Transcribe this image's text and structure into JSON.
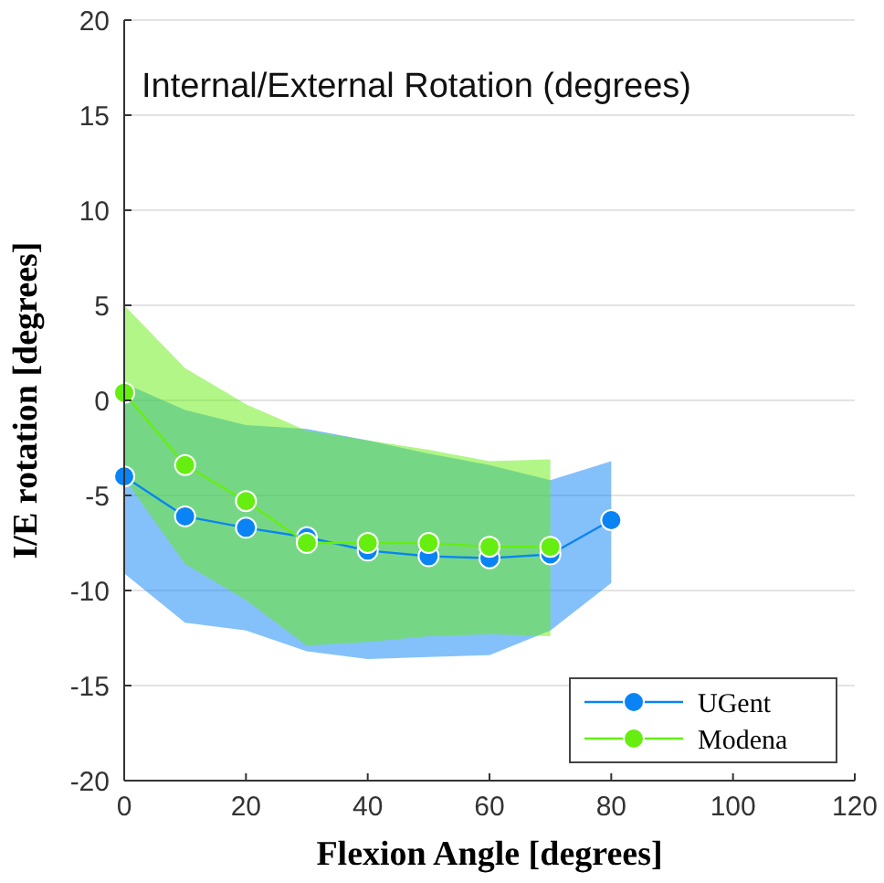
{
  "chart_data": {
    "type": "line",
    "title": "Internal/External Rotation (degrees)",
    "xlabel": "Flexion Angle [degrees]",
    "ylabel": "I/E rotation [degrees]",
    "xlim": [
      0,
      120
    ],
    "xticks": [
      0,
      20,
      40,
      60,
      80,
      100,
      120
    ],
    "ylim": [
      -20,
      20
    ],
    "yticks": [
      -20,
      -15,
      -10,
      -5,
      0,
      5,
      10,
      15,
      20
    ],
    "grid": "y",
    "legend": "bottom right",
    "marker": "circle",
    "line_style": "solid",
    "series": [
      {
        "name": "UGent",
        "color": "#0a84f5",
        "x": [
          0,
          10,
          20,
          30,
          40,
          50,
          60,
          70,
          80
        ],
        "values": [
          -4.0,
          -6.1,
          -6.7,
          -7.2,
          -7.9,
          -8.2,
          -8.3,
          -8.1,
          -6.3
        ],
        "upper": [
          0.9,
          -0.5,
          -1.3,
          -1.5,
          -2.1,
          -2.8,
          -3.4,
          -4.2,
          -3.2
        ],
        "lower": [
          -9.1,
          -11.7,
          -12.1,
          -13.2,
          -13.6,
          -13.5,
          -13.4,
          -12.1,
          -9.6
        ]
      },
      {
        "name": "Modena",
        "color": "#66ee11",
        "x": [
          0,
          10,
          20,
          30,
          40,
          50,
          60,
          70
        ],
        "values": [
          0.4,
          -3.4,
          -5.3,
          -7.5,
          -7.5,
          -7.5,
          -7.7,
          -7.7
        ],
        "upper": [
          5.0,
          1.7,
          -0.2,
          -1.6,
          -2.1,
          -2.6,
          -3.2,
          -3.1
        ],
        "lower": [
          -4.1,
          -8.6,
          -10.5,
          -12.9,
          -12.7,
          -12.4,
          -12.3,
          -12.4
        ]
      }
    ]
  }
}
